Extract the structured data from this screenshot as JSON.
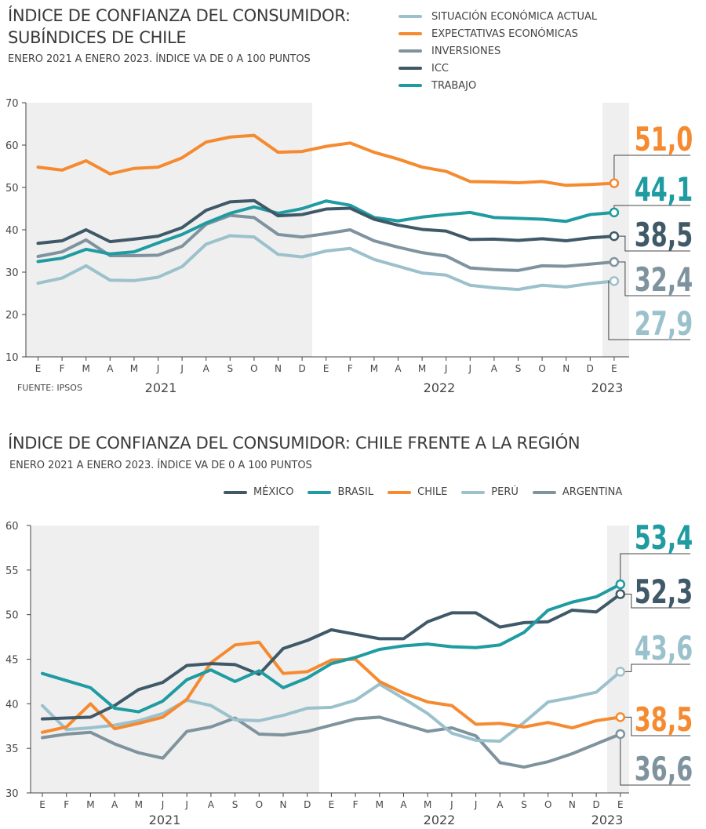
{
  "chart_data": [
    {
      "type": "line",
      "title": "ÍNDICE DE CONFIANZA DEL CONSUMIDOR: SUBÍNDICES DE CHILE",
      "subtitle": "ENERO 2021 A ENERO 2023. ÍNDICE VA DE 0 A 100 PUNTOS",
      "source": "FUENTE: IPSOS",
      "x_labels": [
        "E",
        "F",
        "M",
        "A",
        "M",
        "J",
        "J",
        "A",
        "S",
        "O",
        "N",
        "D",
        "E",
        "F",
        "M",
        "A",
        "M",
        "J",
        "J",
        "A",
        "S",
        "O",
        "N",
        "D",
        "E"
      ],
      "year_labels": [
        "2021",
        "2022",
        "2023"
      ],
      "ylim": [
        10,
        70
      ],
      "yticks": [
        "10",
        "20",
        "30",
        "40",
        "50",
        "60",
        "70"
      ],
      "grid": false,
      "legend_position": "top-right",
      "series": [
        {
          "name": "SITUACIÓN ECONÓMICA ACTUAL",
          "color": "#9bc1cc",
          "end_label": "27,9",
          "values": [
            27.4,
            28.6,
            31.5,
            28.1,
            28.0,
            28.8,
            31.3,
            36.6,
            38.6,
            38.3,
            34.2,
            33.6,
            35.0,
            35.6,
            33.0,
            31.4,
            29.8,
            29.3,
            26.9,
            26.3,
            25.9,
            26.9,
            26.5,
            27.3,
            27.9
          ]
        },
        {
          "name": "EXPECTATIVAS ECONÓMICAS",
          "color": "#f58a30",
          "end_label": "51,0",
          "values": [
            54.8,
            54.1,
            56.3,
            53.2,
            54.5,
            54.8,
            57.0,
            60.7,
            61.9,
            62.3,
            58.3,
            58.5,
            59.7,
            60.5,
            58.3,
            56.7,
            54.8,
            53.8,
            51.4,
            51.3,
            51.1,
            51.4,
            50.5,
            50.7,
            51.0
          ]
        },
        {
          "name": "INVERSIONES",
          "color": "#7f939e",
          "end_label": "32,4",
          "values": [
            33.7,
            34.8,
            37.6,
            33.9,
            33.9,
            34.0,
            36.1,
            41.3,
            43.4,
            42.9,
            38.9,
            38.3,
            39.1,
            40.0,
            37.4,
            35.9,
            34.6,
            33.8,
            31.0,
            30.6,
            30.4,
            31.5,
            31.4,
            31.9,
            32.4
          ]
        },
        {
          "name": "ICC",
          "color": "#3f5968",
          "end_label": "38,5",
          "values": [
            36.8,
            37.4,
            40.0,
            37.2,
            37.8,
            38.5,
            40.5,
            44.6,
            46.6,
            46.9,
            43.3,
            43.6,
            44.9,
            45.1,
            42.5,
            41.1,
            40.1,
            39.7,
            37.7,
            37.8,
            37.5,
            37.9,
            37.4,
            38.1,
            38.5
          ]
        },
        {
          "name": "TRABAJO",
          "color": "#1f9ba1",
          "end_label": "44,1",
          "values": [
            32.5,
            33.3,
            35.4,
            34.3,
            34.8,
            36.9,
            38.9,
            41.6,
            43.9,
            45.4,
            43.9,
            45.0,
            46.8,
            45.8,
            42.9,
            42.1,
            43.0,
            43.6,
            44.1,
            42.9,
            42.7,
            42.5,
            42.0,
            43.6,
            44.1
          ]
        }
      ]
    },
    {
      "type": "line",
      "title": "ÍNDICE DE CONFIANZA DEL CONSUMIDOR: CHILE FRENTE A LA REGIÓN",
      "subtitle": "ENERO 2021 A ENERO 2023. ÍNDICE VA DE 0 A 100 PUNTOS",
      "x_labels": [
        "E",
        "F",
        "M",
        "A",
        "M",
        "J",
        "J",
        "A",
        "S",
        "O",
        "N",
        "D",
        "E",
        "F",
        "M",
        "A",
        "M",
        "J",
        "J",
        "A",
        "S",
        "O",
        "N",
        "D",
        "E"
      ],
      "year_labels": [
        "2021",
        "2022",
        "2023"
      ],
      "ylim": [
        30,
        60
      ],
      "yticks": [
        "30",
        "35",
        "40",
        "45",
        "50",
        "55",
        "60"
      ],
      "grid": false,
      "legend_position": "top",
      "series": [
        {
          "name": "MÉXICO",
          "color": "#3f5968",
          "end_label": "52,3",
          "values": [
            38.3,
            38.4,
            38.5,
            39.8,
            41.6,
            42.4,
            44.3,
            44.5,
            44.4,
            43.3,
            46.2,
            47.1,
            48.3,
            47.8,
            47.3,
            47.3,
            49.2,
            50.2,
            50.2,
            48.6,
            49.1,
            49.2,
            50.5,
            50.3,
            52.3
          ]
        },
        {
          "name": "BRASIL",
          "color": "#1f9ba1",
          "end_label": "53,4",
          "values": [
            43.4,
            42.6,
            41.8,
            39.5,
            39.1,
            40.3,
            42.7,
            43.8,
            42.5,
            43.7,
            41.8,
            42.9,
            44.5,
            45.2,
            46.1,
            46.5,
            46.7,
            46.4,
            46.3,
            46.6,
            48.0,
            50.5,
            51.4,
            52.0,
            53.4
          ]
        },
        {
          "name": "CHILE",
          "color": "#f58a30",
          "end_label": "38,5",
          "values": [
            36.8,
            37.4,
            40.0,
            37.2,
            37.8,
            38.5,
            40.5,
            44.6,
            46.6,
            46.9,
            43.4,
            43.6,
            44.9,
            45.0,
            42.5,
            41.2,
            40.2,
            39.8,
            37.7,
            37.8,
            37.4,
            37.9,
            37.3,
            38.1,
            38.5
          ]
        },
        {
          "name": "PERÚ",
          "color": "#9bc1cc",
          "end_label": "43,6",
          "values": [
            39.8,
            37.1,
            37.3,
            37.6,
            38.1,
            38.9,
            40.4,
            39.8,
            38.2,
            38.1,
            38.7,
            39.5,
            39.6,
            40.4,
            42.2,
            40.6,
            38.9,
            36.7,
            35.9,
            35.8,
            37.9,
            40.2,
            40.7,
            41.3,
            43.6
          ]
        },
        {
          "name": "ARGENTINA",
          "color": "#7f939e",
          "end_label": "36,6",
          "values": [
            36.2,
            36.6,
            36.8,
            35.5,
            34.5,
            33.9,
            36.9,
            37.4,
            38.4,
            36.6,
            36.5,
            36.9,
            37.6,
            38.3,
            38.5,
            37.7,
            36.9,
            37.3,
            36.4,
            33.4,
            32.9,
            33.5,
            34.4,
            35.5,
            36.6
          ]
        }
      ]
    }
  ]
}
